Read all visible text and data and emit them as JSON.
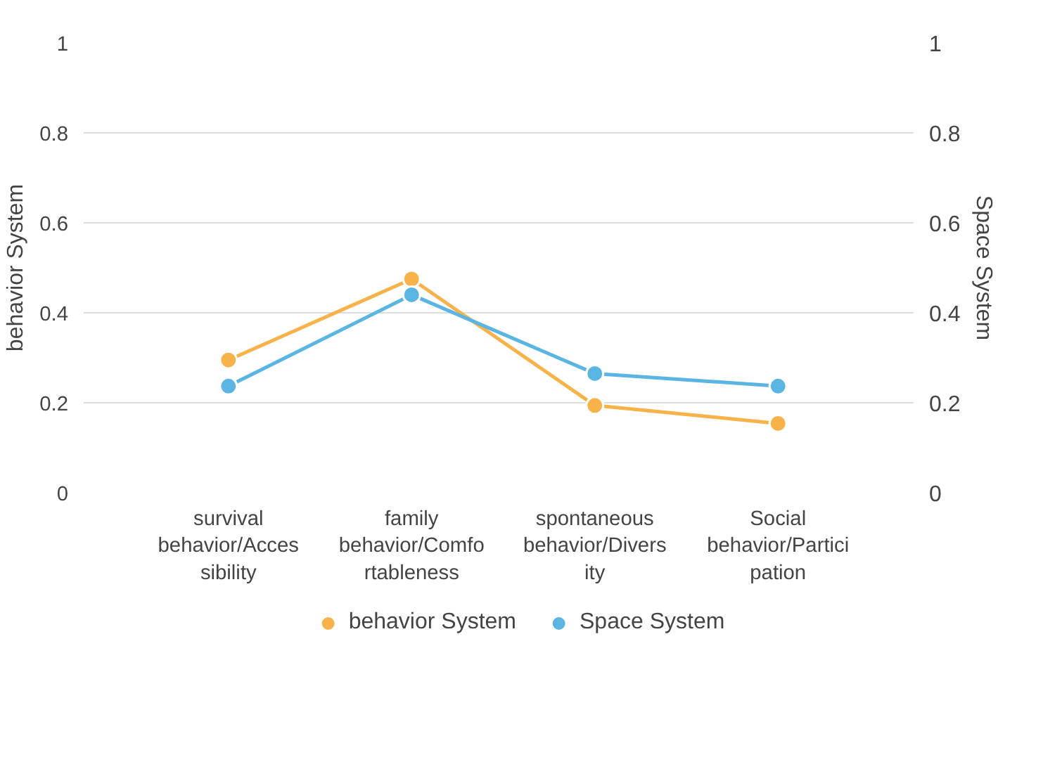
{
  "chart_data": {
    "type": "line",
    "categories": [
      "survival\nbehavior/Acces\nsibility",
      "family\nbehavior/Comfo\nrtableness",
      "spontaneous\nbehavior/Divers\nity",
      "Social\nbehavior/Partici\npation"
    ],
    "series": [
      {
        "name": "behavior System",
        "color": "#f7b24a",
        "values": [
          0.295,
          0.475,
          0.194,
          0.154
        ]
      },
      {
        "name": "Space System",
        "color": "#5ab5e3",
        "values": [
          0.237,
          0.44,
          0.265,
          0.237
        ]
      }
    ],
    "ylabel": "behavior System",
    "y2label": "Space System",
    "ylim": [
      0,
      1
    ],
    "yticks": [
      0,
      0.2,
      0.4,
      0.6,
      0.8,
      1
    ],
    "y2lim": [
      0,
      1
    ],
    "y2ticks": [
      0,
      0.2,
      0.4,
      0.6,
      0.8,
      1
    ],
    "grid": "y",
    "legend": "bottom",
    "marker": "circle",
    "line_style": "solid"
  }
}
